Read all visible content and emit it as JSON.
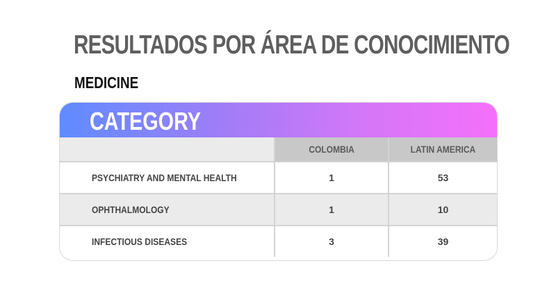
{
  "title": "RESULTADOS POR ÁREA DE CONOCIMIENTO",
  "subtitle": "MEDICINE",
  "table": {
    "header_label": "CATEGORY",
    "columns": [
      "COLOMBIA",
      "LATIN AMERICA"
    ],
    "rows": [
      {
        "category": "PSYCHIATRY AND MENTAL HEALTH",
        "colombia": "1",
        "latin_america": "53"
      },
      {
        "category": "OPHTHALMOLOGY",
        "colombia": "1",
        "latin_america": "10"
      },
      {
        "category": "INFECTIOUS DISEASES",
        "colombia": "3",
        "latin_america": "39"
      }
    ]
  },
  "colors": {
    "gradient_start": "#5f8cff",
    "gradient_end": "#f56ffb",
    "title": "#5f5f5f",
    "header_cells": "#c8c8c8"
  }
}
